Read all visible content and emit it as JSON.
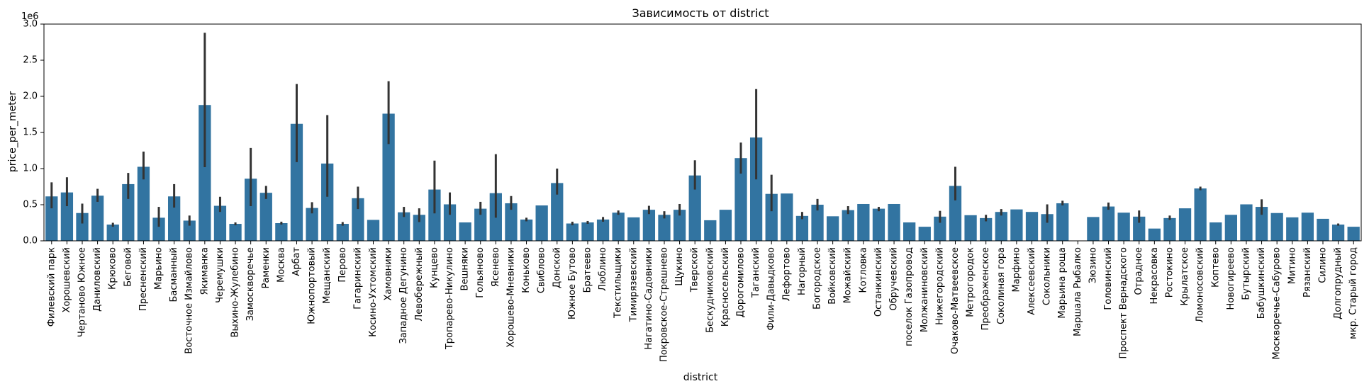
{
  "chart_data": {
    "type": "bar",
    "title": "Зависимость от district",
    "xlabel": "district",
    "ylabel": "price_per_meter",
    "y_offset_label": "1e6",
    "y_scale": 1000000,
    "ylim": [
      0,
      3000000
    ],
    "yticks": [
      0,
      500000,
      1000000,
      1500000,
      2000000,
      2500000,
      3000000
    ],
    "ytick_labels": [
      "0.0",
      "0.5",
      "1.0",
      "1.5",
      "2.0",
      "2.5",
      "3.0"
    ],
    "bar_color": "#3274a1",
    "errorbar_color": "#333333",
    "grid": false,
    "legend": "none",
    "categories": [
      "Филевский парк",
      "Хорошевский",
      "Чертаново Южное",
      "Даниловский",
      "Крюково",
      "Беговой",
      "Пресненский",
      "Марьино",
      "Басманный",
      "Восточное Измайлово",
      "Якиманка",
      "Черемушки",
      "Выхино-Жулебино",
      "Замоскворечье",
      "Раменки",
      "Москва",
      "Арбат",
      "Южнопортовый",
      "Мещанский",
      "Перово",
      "Гагаринский",
      "Косино-Ухтомский",
      "Хамовники",
      "Западное Дегунино",
      "Левобережный",
      "Кунцево",
      "Тропарево-Никулино",
      "Вешняки",
      "Гольяново",
      "Ясенево",
      "Хорошево-Мневники",
      "Коньково",
      "Свиблово",
      "Донской",
      "Южное Бутово",
      "Братеево",
      "Люблино",
      "Текстильщики",
      "Тимирязевский",
      "Нагатино-Садовники",
      "Покровское-Стрешнево",
      "Щукино",
      "Тверской",
      "Бескудниковский",
      "Красносельский",
      "Дорогомилово",
      "Таганский",
      "Фили-Давыдково",
      "Лефортово",
      "Нагорный",
      "Богородское",
      "Войковский",
      "Можайский",
      "Котловка",
      "Останкинский",
      "Обручевский",
      "поселок Газопровод",
      "Молжаниновский",
      "Нижегородский",
      "Очаково-Матвеевское",
      "Метрогородок",
      "Преображенское",
      "Соколиная гора",
      "Марфино",
      "Алексеевский",
      "Сокольники",
      "Марьина роща",
      "Маршала Рыбалко",
      "Зюзино",
      "Головинский",
      "Проспект Вернадского",
      "Отрадное",
      "Некрасовка",
      "Ростокино",
      "Крылатское",
      "Ломоносовский",
      "Коптево",
      "Новогиреево",
      "Бутырский",
      "Бабушкинский",
      "Москворечье-Сабурово",
      "Митино",
      "Рязанский",
      "Силино",
      "Долгопрудный",
      "мкр. Старый город"
    ],
    "values": [
      615000,
      670000,
      385000,
      625000,
      225000,
      785000,
      1025000,
      320000,
      615000,
      280000,
      1880000,
      485000,
      235000,
      860000,
      665000,
      245000,
      1620000,
      455000,
      1070000,
      235000,
      590000,
      290000,
      1760000,
      395000,
      360000,
      710000,
      505000,
      255000,
      445000,
      660000,
      520000,
      295000,
      490000,
      800000,
      240000,
      255000,
      295000,
      390000,
      325000,
      430000,
      360000,
      430000,
      905000,
      285000,
      430000,
      1145000,
      1430000,
      650000,
      655000,
      345000,
      500000,
      340000,
      425000,
      510000,
      445000,
      510000,
      255000,
      195000,
      335000,
      760000,
      355000,
      315000,
      400000,
      435000,
      400000,
      370000,
      520000,
      0,
      330000,
      475000,
      390000,
      335000,
      170000,
      315000,
      450000,
      725000,
      255000,
      360000,
      505000,
      470000,
      385000,
      325000,
      390000,
      305000,
      225000,
      195000
    ],
    "ci_low": [
      450000,
      480000,
      240000,
      540000,
      195000,
      580000,
      850000,
      195000,
      460000,
      210000,
      1020000,
      400000,
      215000,
      480000,
      580000,
      225000,
      1090000,
      380000,
      610000,
      210000,
      440000,
      null,
      1340000,
      330000,
      260000,
      380000,
      360000,
      null,
      360000,
      320000,
      430000,
      270000,
      null,
      640000,
      215000,
      235000,
      265000,
      360000,
      null,
      370000,
      310000,
      350000,
      710000,
      null,
      null,
      930000,
      850000,
      410000,
      null,
      300000,
      420000,
      null,
      370000,
      null,
      410000,
      null,
      null,
      null,
      250000,
      560000,
      null,
      270000,
      350000,
      null,
      null,
      250000,
      490000,
      null,
      null,
      430000,
      null,
      250000,
      null,
      290000,
      null,
      700000,
      null,
      null,
      null,
      360000,
      null,
      null,
      null,
      null,
      210000,
      null
    ],
    "ci_high": [
      810000,
      880000,
      515000,
      720000,
      250000,
      940000,
      1235000,
      470000,
      785000,
      350000,
      2880000,
      610000,
      255000,
      1285000,
      760000,
      265000,
      2170000,
      535000,
      1740000,
      260000,
      750000,
      null,
      2210000,
      470000,
      450000,
      1110000,
      670000,
      null,
      540000,
      1200000,
      620000,
      320000,
      null,
      1000000,
      265000,
      275000,
      330000,
      420000,
      null,
      485000,
      410000,
      510000,
      1115000,
      null,
      null,
      1360000,
      2100000,
      915000,
      null,
      400000,
      580000,
      null,
      480000,
      null,
      470000,
      null,
      null,
      null,
      415000,
      1025000,
      null,
      360000,
      440000,
      null,
      null,
      505000,
      555000,
      null,
      null,
      530000,
      null,
      420000,
      null,
      350000,
      null,
      750000,
      null,
      null,
      null,
      575000,
      null,
      null,
      null,
      null,
      240000,
      null
    ]
  }
}
